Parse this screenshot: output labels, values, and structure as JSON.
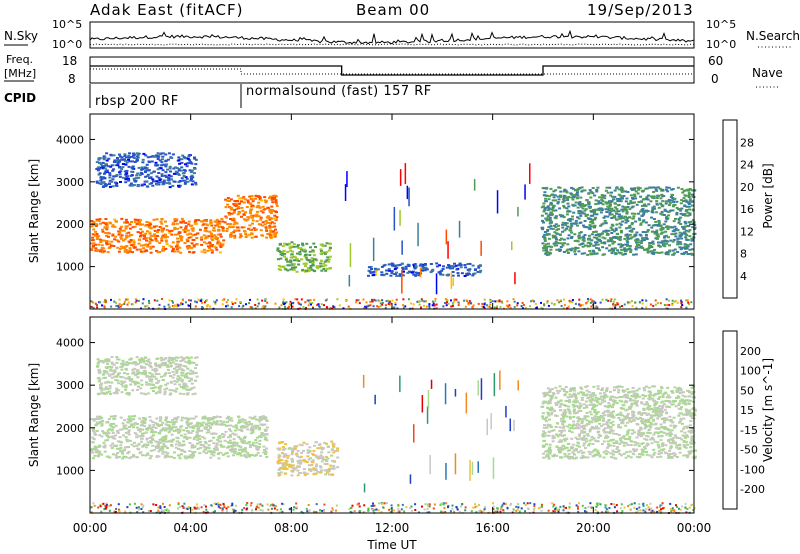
{
  "header": {
    "station": "Adak East (fitACF)",
    "beam": "Beam 00",
    "date": "19/Sep/2013"
  },
  "noise_panel": {
    "left_label": "N.Sky",
    "right_label": "N.Search",
    "left_ticks": [
      "10^5",
      "10^0"
    ],
    "right_ticks": [
      "10^5",
      "10^0"
    ]
  },
  "freq_panel": {
    "left_label_1": "Freq.",
    "left_label_2": "[MHz]",
    "left_ticks": [
      "18",
      "8"
    ],
    "right_label": "Nave",
    "right_ticks": [
      "60",
      "0"
    ]
  },
  "cpid_panel": {
    "label": "CPID",
    "programs": [
      {
        "name": "rbsp 200 RF",
        "start_hour": 0,
        "end_hour": 6
      },
      {
        "name": "normalsound (fast) 157 RF",
        "start_hour": 6,
        "end_hour": 24
      }
    ]
  },
  "power_panel": {
    "ylabel": "Slant Range [km]",
    "cbar_label": "Power [dB]",
    "cbar_ticks": [
      "28",
      "24",
      "20",
      "16",
      "12",
      "8",
      "4"
    ],
    "cbar_colors": [
      "#ff0000",
      "#ff4a00",
      "#ff8a00",
      "#ffbe00",
      "#9ec92e",
      "#4f9a54",
      "#3c7ea0",
      "#2952c8",
      "#0000ff"
    ]
  },
  "velocity_panel": {
    "ylabel": "Slant Range [km]",
    "cbar_label": "Velocity [m s^-1]",
    "cbar_ticks": [
      "200",
      "100",
      "50",
      "15",
      "-15",
      "-50",
      "-100",
      "-200"
    ],
    "cbar_colors": [
      "#1e3fc4",
      "#2a79b6",
      "#2f9a6a",
      "#4fc842",
      "#a8d990",
      "#c8c8c0",
      "#f3c040",
      "#f08a1c",
      "#e84a1a",
      "#e00000"
    ]
  },
  "xaxis": {
    "ticks": [
      "00:00",
      "04:00",
      "08:00",
      "12:00",
      "16:00",
      "20:00",
      "00:00"
    ],
    "label": "Time UT"
  },
  "chart_data": [
    {
      "type": "heatmap",
      "title": "Power [dB]",
      "xlabel": "Time UT",
      "ylabel": "Slant Range [km]",
      "xlim": [
        0,
        24
      ],
      "ylim": [
        0,
        4600
      ],
      "yticks": [
        1000,
        2000,
        3000,
        4000
      ],
      "clim": [
        0,
        32
      ],
      "echo_regions": [
        {
          "t_start": 0.0,
          "t_end": 5.3,
          "range_low": 1350,
          "range_high": 2150,
          "value": 24
        },
        {
          "t_start": 5.3,
          "t_end": 7.4,
          "range_low": 1700,
          "range_high": 2700,
          "value": 24
        },
        {
          "t_start": 7.4,
          "t_end": 9.5,
          "range_low": 900,
          "range_high": 1600,
          "value": 14
        },
        {
          "t_start": 0.2,
          "t_end": 4.2,
          "range_low": 2900,
          "range_high": 3700,
          "value": 6
        },
        {
          "t_start": 17.9,
          "t_end": 24.0,
          "range_low": 1300,
          "range_high": 2900,
          "value": 11
        },
        {
          "t_start": 11.0,
          "t_end": 15.5,
          "range_low": 800,
          "range_high": 1100,
          "value": 6
        }
      ]
    },
    {
      "type": "heatmap",
      "title": "Velocity [m s^-1]",
      "xlabel": "Time UT",
      "ylabel": "Slant Range [km]",
      "xlim": [
        0,
        24
      ],
      "ylim": [
        0,
        4600
      ],
      "yticks": [
        1000,
        2000,
        3000,
        4000
      ],
      "clim": [
        -250,
        250
      ],
      "echo_regions": [
        {
          "t_start": 0.0,
          "t_end": 7.0,
          "range_low": 1300,
          "range_high": 2300,
          "value": 0
        },
        {
          "t_start": 7.4,
          "t_end": 9.8,
          "range_low": 900,
          "range_high": 1700,
          "value": -40
        },
        {
          "t_start": 0.2,
          "t_end": 4.2,
          "range_low": 2800,
          "range_high": 3700,
          "value": 0
        },
        {
          "t_start": 17.9,
          "t_end": 24.0,
          "range_low": 1300,
          "range_high": 3000,
          "value": 0
        }
      ]
    }
  ]
}
